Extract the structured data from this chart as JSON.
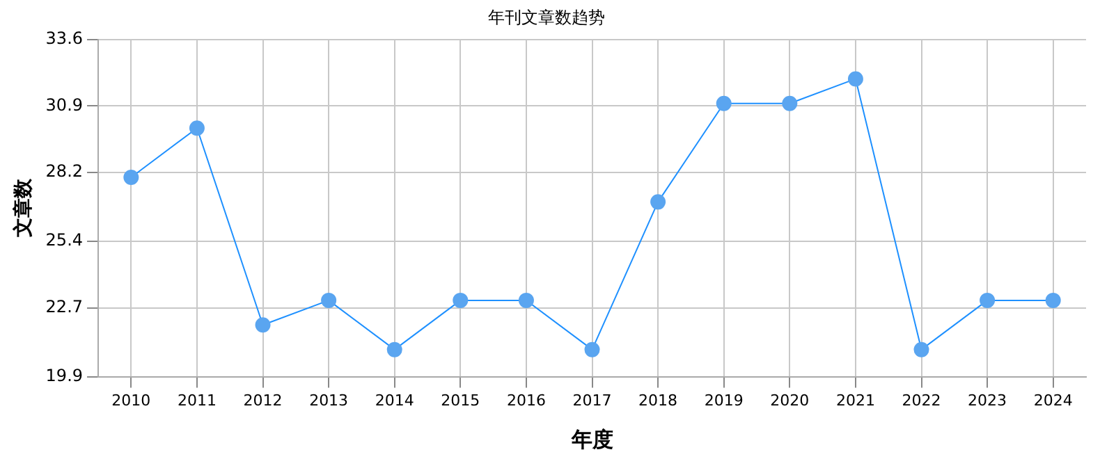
{
  "chart_data": {
    "type": "line",
    "title": "年刊文章数趋势",
    "xlabel": "年度",
    "ylabel": "文章数",
    "categories": [
      "2010",
      "2011",
      "2012",
      "2013",
      "2014",
      "2015",
      "2016",
      "2017",
      "2018",
      "2019",
      "2020",
      "2021",
      "2022",
      "2023",
      "2024"
    ],
    "series": [
      {
        "color": "#1e90ff",
        "values": [
          28,
          30,
          22,
          23,
          21,
          23,
          23,
          21,
          27,
          31,
          31,
          32,
          21,
          23,
          23
        ]
      }
    ],
    "ylim": [
      19.9,
      33.6
    ],
    "yticks": [
      19.9,
      22.7,
      25.4,
      28.2,
      30.9,
      33.6
    ],
    "grid": true,
    "marker": "circle",
    "line_style": "solid",
    "legend": false
  }
}
